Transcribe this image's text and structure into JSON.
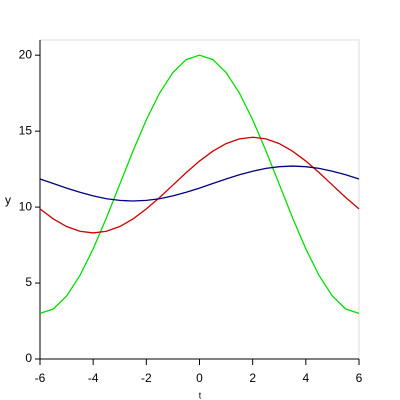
{
  "chart_data": {
    "type": "line",
    "x_label": "t",
    "y_label": "y",
    "x": [
      -6,
      -5.5,
      -5,
      -4.5,
      -4,
      -3.5,
      -3,
      -2.5,
      -2,
      -1.5,
      -1,
      -0.5,
      0,
      0.5,
      1,
      1.5,
      2,
      2.5,
      3,
      3.5,
      4,
      4.5,
      5,
      5.5,
      6
    ],
    "series": [
      {
        "name": "green",
        "color": "#00e000",
        "values": [
          3,
          3.29,
          4.14,
          5.49,
          7.25,
          9.3,
          11.5,
          13.7,
          15.75,
          17.51,
          18.86,
          19.71,
          20,
          19.71,
          18.86,
          17.51,
          15.75,
          13.7,
          11.5,
          9.3,
          7.25,
          5.49,
          4.14,
          3.29,
          3
        ]
      },
      {
        "name": "red",
        "color": "#cc0000",
        "values": [
          9.88,
          9.22,
          8.72,
          8.41,
          8.3,
          8.41,
          8.72,
          9.22,
          9.88,
          10.63,
          11.45,
          12.27,
          13.03,
          13.68,
          14.18,
          14.49,
          14.6,
          14.49,
          14.18,
          13.68,
          13.03,
          12.27,
          11.45,
          10.63,
          9.88
        ]
      },
      {
        "name": "blue",
        "color": "#000080",
        "values": [
          11.85,
          11.55,
          11.25,
          10.98,
          10.74,
          10.55,
          10.44,
          10.4,
          10.44,
          10.55,
          10.74,
          10.98,
          11.25,
          11.55,
          11.85,
          12.13,
          12.36,
          12.55,
          12.66,
          12.7,
          12.66,
          12.55,
          12.36,
          12.13,
          11.85
        ]
      }
    ],
    "xlim": [
      -6,
      6
    ],
    "ylim": [
      0,
      21
    ],
    "xticks": [
      -6,
      -4,
      -2,
      0,
      2,
      4,
      6
    ],
    "yticks": [
      0,
      5,
      10,
      15,
      20
    ],
    "legend": false
  }
}
